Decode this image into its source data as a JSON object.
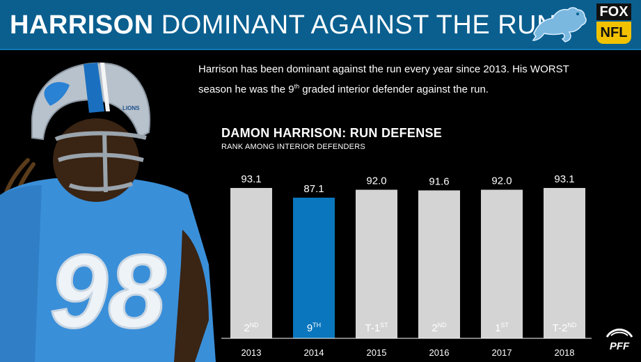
{
  "header": {
    "title_strong": "HARRISON",
    "title_rest": " DOMINANT AGAINST THE RUN",
    "fox_label": "FOX",
    "nfl_label": "NFL"
  },
  "description": {
    "part1": "Harrison has been dominant against the run every year since 2013. His WORST season he was the 9",
    "sup": "th",
    "part2": " graded interior defender against the run."
  },
  "player": {
    "jersey_number": "98",
    "helmet_text": "LIONS"
  },
  "pff_label": "PFF",
  "colors": {
    "header_bg": "#0a5f8f",
    "highlight": "#0a76bd",
    "bar": "#d4d4d4"
  },
  "chart_data": {
    "type": "bar",
    "title": "DAMON HARRISON: RUN DEFENSE",
    "subtitle": "RANK AMONG INTERIOR DEFENDERS",
    "categories": [
      "2013",
      "2014",
      "2015",
      "2016",
      "2017",
      "2018"
    ],
    "values": [
      93.1,
      87.1,
      92.0,
      91.6,
      92.0,
      93.1
    ],
    "value_labels": [
      "93.1",
      "87.1",
      "92.0",
      "91.6",
      "92.0",
      "93.1"
    ],
    "ranks": [
      {
        "main": "2",
        "sup": "ND"
      },
      {
        "main": "9",
        "sup": "TH"
      },
      {
        "main": "T-1",
        "sup": "ST"
      },
      {
        "main": "2",
        "sup": "ND"
      },
      {
        "main": "1",
        "sup": "ST"
      },
      {
        "main": "T-2",
        "sup": "ND"
      }
    ],
    "highlight_index": 1,
    "ylim": [
      0,
      100
    ],
    "grid": false
  }
}
